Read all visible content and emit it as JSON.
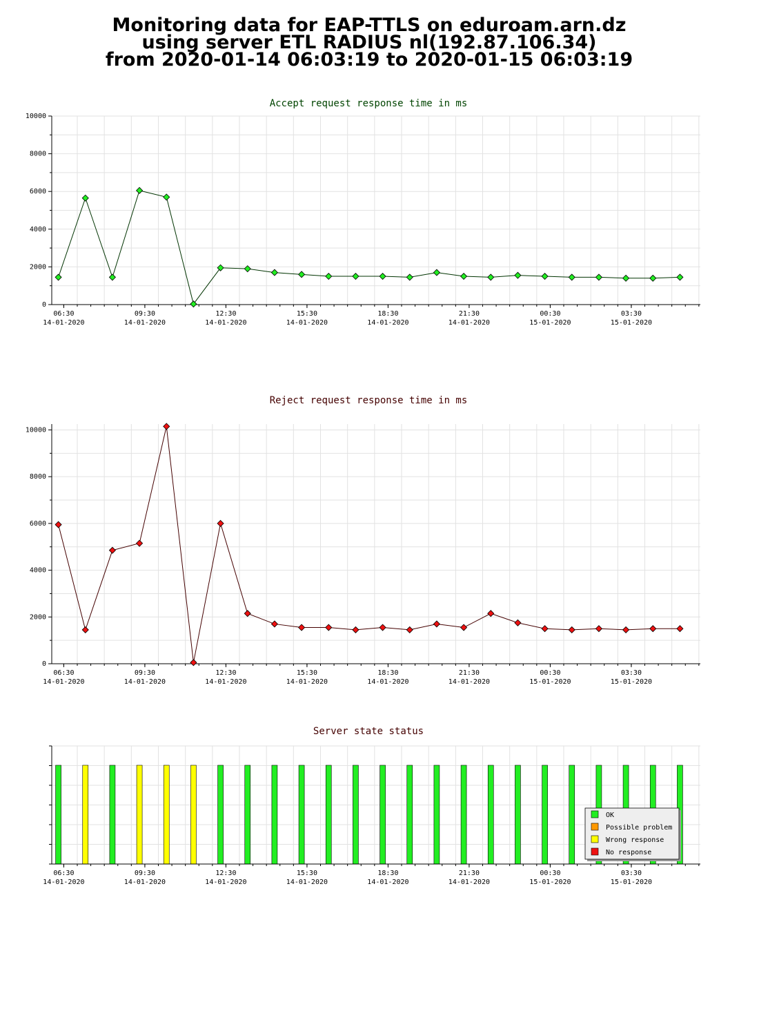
{
  "header": {
    "line1": "Monitoring data for EAP-TTLS on eduroam.arn.dz",
    "line2": "using server ETL RADIUS nl(192.87.106.34)",
    "line3": "from 2020-01-14 06:03:19 to 2020-01-15 06:03:19"
  },
  "x_ticks": [
    {
      "time": "06:30",
      "date": "14-01-2020"
    },
    {
      "time": "09:30",
      "date": "14-01-2020"
    },
    {
      "time": "12:30",
      "date": "14-01-2020"
    },
    {
      "time": "15:30",
      "date": "14-01-2020"
    },
    {
      "time": "18:30",
      "date": "14-01-2020"
    },
    {
      "time": "21:30",
      "date": "14-01-2020"
    },
    {
      "time": "00:30",
      "date": "15-01-2020"
    },
    {
      "time": "03:30",
      "date": "15-01-2020"
    }
  ],
  "chart_data": [
    {
      "type": "line",
      "title": "Accept request response time in ms",
      "title_color": "#004400",
      "line_color": "#003300",
      "marker_color": "#22ee22",
      "ylim": [
        0,
        10000
      ],
      "yticks": [
        0,
        2000,
        4000,
        6000,
        8000,
        10000
      ],
      "x": [
        "2020-01-14 06:18",
        "2020-01-14 07:18",
        "2020-01-14 08:18",
        "2020-01-14 09:18",
        "2020-01-14 10:18",
        "2020-01-14 11:18",
        "2020-01-14 12:18",
        "2020-01-14 13:18",
        "2020-01-14 14:18",
        "2020-01-14 15:18",
        "2020-01-14 16:18",
        "2020-01-14 17:18",
        "2020-01-14 18:18",
        "2020-01-14 19:18",
        "2020-01-14 20:18",
        "2020-01-14 21:18",
        "2020-01-14 22:18",
        "2020-01-14 23:18",
        "2020-01-15 00:18",
        "2020-01-15 01:18",
        "2020-01-15 02:18",
        "2020-01-15 03:18",
        "2020-01-15 04:18",
        "2020-01-15 05:18"
      ],
      "values": [
        1450,
        5650,
        1450,
        6050,
        5700,
        30,
        1950,
        1900,
        1700,
        1600,
        1500,
        1500,
        1500,
        1450,
        1700,
        1500,
        1450,
        1550,
        1500,
        1450,
        1450,
        1400,
        1400,
        1450
      ],
      "grid": true
    },
    {
      "type": "line",
      "title": "Reject request response time in ms",
      "title_color": "#440000",
      "line_color": "#440000",
      "marker_color": "#ee1111",
      "ylim": [
        0,
        10250
      ],
      "yticks": [
        0,
        2000,
        4000,
        6000,
        8000,
        10000
      ],
      "x": [
        "2020-01-14 06:18",
        "2020-01-14 07:18",
        "2020-01-14 08:18",
        "2020-01-14 09:18",
        "2020-01-14 10:18",
        "2020-01-14 11:18",
        "2020-01-14 12:18",
        "2020-01-14 13:18",
        "2020-01-14 14:18",
        "2020-01-14 15:18",
        "2020-01-14 16:18",
        "2020-01-14 17:18",
        "2020-01-14 18:18",
        "2020-01-14 19:18",
        "2020-01-14 20:18",
        "2020-01-14 21:18",
        "2020-01-14 22:18",
        "2020-01-14 23:18",
        "2020-01-15 00:18",
        "2020-01-15 01:18",
        "2020-01-15 02:18",
        "2020-01-15 03:18",
        "2020-01-15 04:18",
        "2020-01-15 05:18"
      ],
      "values": [
        5950,
        1450,
        4850,
        5150,
        10150,
        50,
        6000,
        2150,
        1700,
        1550,
        1550,
        1450,
        1550,
        1450,
        1700,
        1550,
        2150,
        1750,
        1500,
        1450,
        1500,
        1450,
        1500,
        1500
      ],
      "grid": true
    },
    {
      "type": "bar",
      "title": "Server state status",
      "title_color": "#440000",
      "legend_placement": "bottom-right",
      "legend": [
        {
          "label": "OK",
          "color": "#22ee22"
        },
        {
          "label": "Possible problem",
          "color": "#ff9900"
        },
        {
          "label": "Wrong response",
          "color": "#ffff00"
        },
        {
          "label": "No response",
          "color": "#ee1111"
        }
      ],
      "x": [
        "2020-01-14 06:18",
        "2020-01-14 07:18",
        "2020-01-14 08:18",
        "2020-01-14 09:18",
        "2020-01-14 10:18",
        "2020-01-14 11:18",
        "2020-01-14 12:18",
        "2020-01-14 13:18",
        "2020-01-14 14:18",
        "2020-01-14 15:18",
        "2020-01-14 16:18",
        "2020-01-14 17:18",
        "2020-01-14 18:18",
        "2020-01-14 19:18",
        "2020-01-14 20:18",
        "2020-01-14 21:18",
        "2020-01-14 22:18",
        "2020-01-14 23:18",
        "2020-01-15 00:18",
        "2020-01-15 01:18",
        "2020-01-15 02:18",
        "2020-01-15 03:18",
        "2020-01-15 04:18",
        "2020-01-15 05:18"
      ],
      "states": [
        "OK",
        "Wrong response",
        "OK",
        "Wrong response",
        "Wrong response",
        "Wrong response",
        "OK",
        "OK",
        "OK",
        "OK",
        "OK",
        "OK",
        "OK",
        "OK",
        "OK",
        "OK",
        "OK",
        "OK",
        "OK",
        "OK",
        "OK",
        "OK",
        "OK",
        "OK"
      ]
    }
  ]
}
